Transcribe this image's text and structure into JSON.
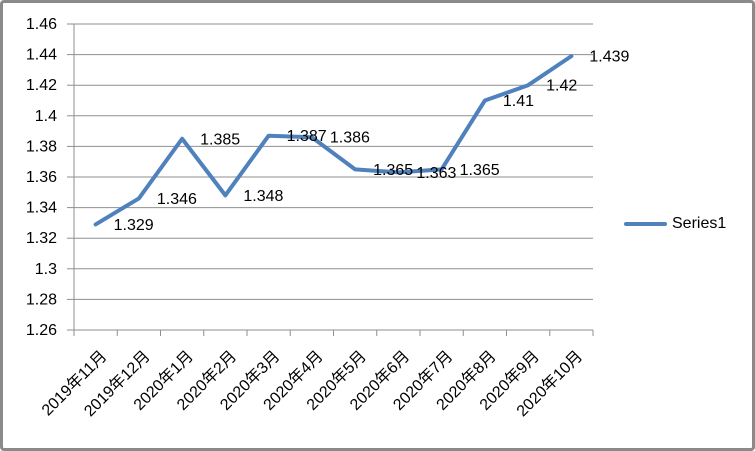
{
  "chart_data": {
    "type": "line",
    "categories": [
      "2019年11月",
      "2019年12月",
      "2020年1月",
      "2020年2月",
      "2020年3月",
      "2020年4月",
      "2020年5月",
      "2020年6月",
      "2020年7月",
      "2020年8月",
      "2020年9月",
      "2020年10月"
    ],
    "series": [
      {
        "name": "Series1",
        "color": "#4F81BD",
        "values": [
          1.329,
          1.346,
          1.385,
          1.348,
          1.387,
          1.386,
          1.365,
          1.363,
          1.365,
          1.41,
          1.42,
          1.439
        ],
        "data_labels": [
          "1.329",
          "1.346",
          "1.385",
          "1.348",
          "1.387",
          "1.386",
          "1.365",
          "1.363",
          "1.365",
          "1.41",
          "1.42",
          "1.439"
        ]
      }
    ],
    "ylim": [
      1.26,
      1.46
    ],
    "ytick_step": 0.02,
    "ytick_labels": [
      "1.26",
      "1.28",
      "1.3",
      "1.32",
      "1.34",
      "1.36",
      "1.38",
      "1.4",
      "1.42",
      "1.44",
      "1.46"
    ],
    "grid": true,
    "legend": {
      "position": "right",
      "label": "Series1"
    }
  },
  "colors": {
    "series": "#4F81BD",
    "gridline": "#8F8F8F",
    "axis": "#8F8F8F",
    "text": "#000000",
    "frame_border": "#8A8A8A",
    "background": "#FFFFFF"
  }
}
